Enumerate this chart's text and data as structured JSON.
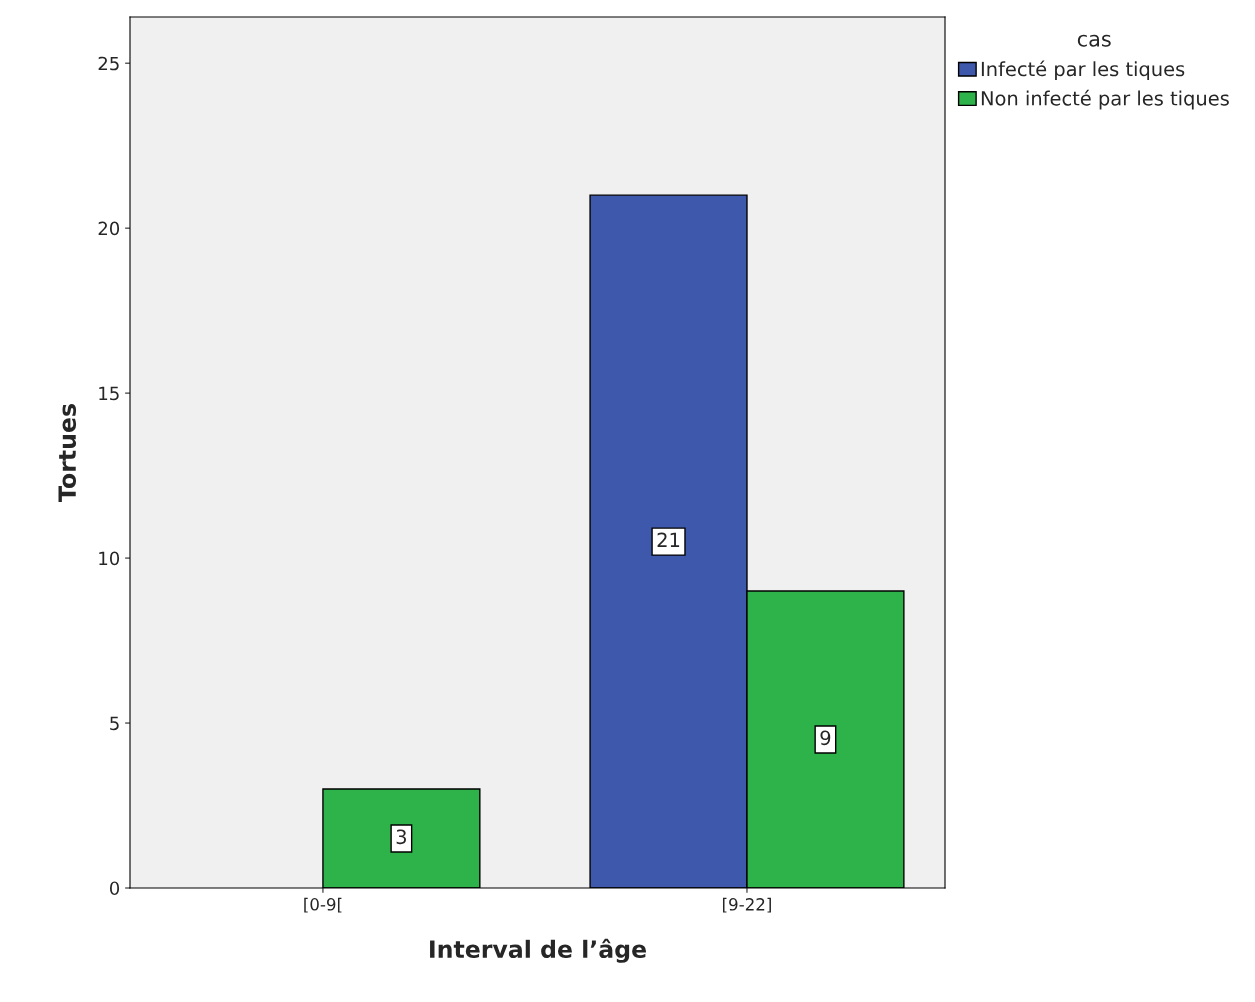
{
  "chart_data": {
    "type": "bar",
    "xlabel": "Interval de l’âge",
    "ylabel": "Tortues",
    "legend_title": "cas",
    "categories": [
      "[0-9[",
      "[9-22]"
    ],
    "series": [
      {
        "name": "Infecté par les tiques",
        "color": "#3e58ac",
        "values": [
          null,
          21
        ]
      },
      {
        "name": "Non infecté par les tiques",
        "color": "#2db34a",
        "values": [
          3,
          9
        ]
      }
    ],
    "ylim": [
      0,
      26.4
    ],
    "yticks": [
      0,
      5,
      10,
      15,
      20,
      25
    ],
    "data_labels": true,
    "grid": false,
    "legend": "top right"
  }
}
